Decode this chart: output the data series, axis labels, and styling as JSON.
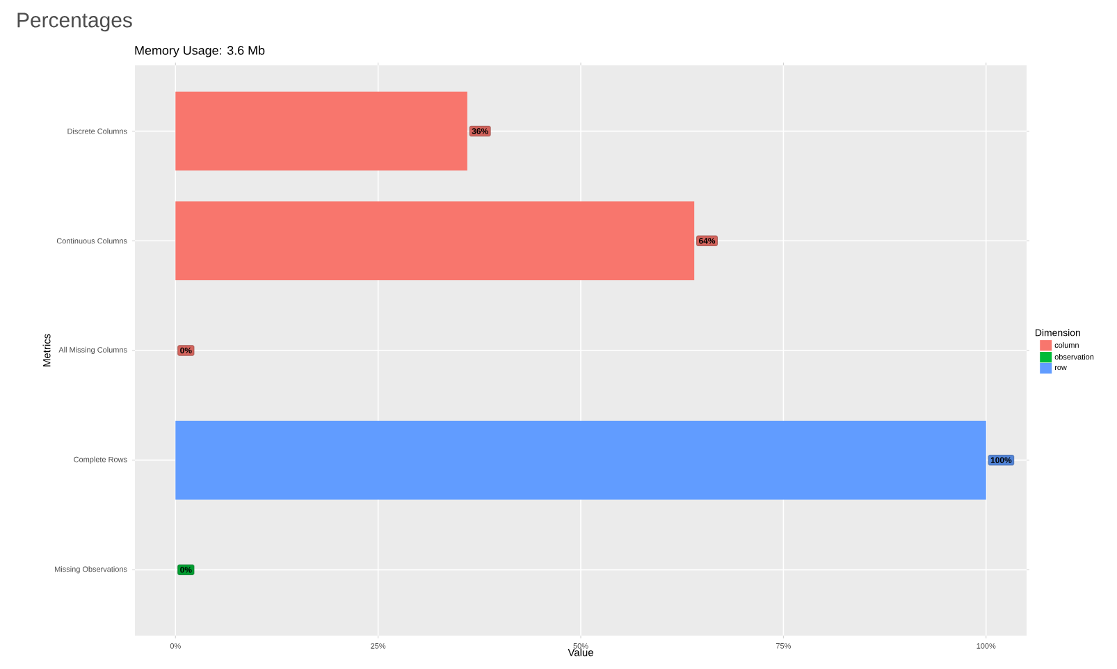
{
  "chart_data": {
    "type": "bar",
    "orientation": "horizontal",
    "title": "Percentages",
    "subtitle": "Memory Usage: 3.6 Mb",
    "xlabel": "Value",
    "ylabel": "Metrics",
    "legend_title": "Dimension",
    "categories": [
      "Discrete Columns",
      "Continuous Columns",
      "All Missing Columns",
      "Complete Rows",
      "Missing Observations"
    ],
    "series": [
      {
        "name": "column",
        "color": "#f8766d",
        "values": [
          0.36,
          0.64,
          0,
          null,
          null
        ],
        "value_labels": [
          "36%",
          "64%",
          "0%",
          null,
          null
        ]
      },
      {
        "name": "observation",
        "color": "#00ba38",
        "values": [
          null,
          null,
          null,
          null,
          0
        ],
        "value_labels": [
          null,
          null,
          null,
          null,
          "0%"
        ]
      },
      {
        "name": "row",
        "color": "#619cff",
        "values": [
          null,
          null,
          null,
          1.0,
          null
        ],
        "value_labels": [
          null,
          null,
          null,
          "100%",
          null
        ]
      }
    ],
    "xlim": [
      -0.05,
      1.05
    ],
    "xticks": [
      {
        "value": 0,
        "label": "0%"
      },
      {
        "value": 0.25,
        "label": "25%"
      },
      {
        "value": 0.5,
        "label": "50%"
      },
      {
        "value": 0.75,
        "label": "75%"
      },
      {
        "value": 1,
        "label": "100%"
      }
    ],
    "grid": true,
    "legend": "right"
  }
}
